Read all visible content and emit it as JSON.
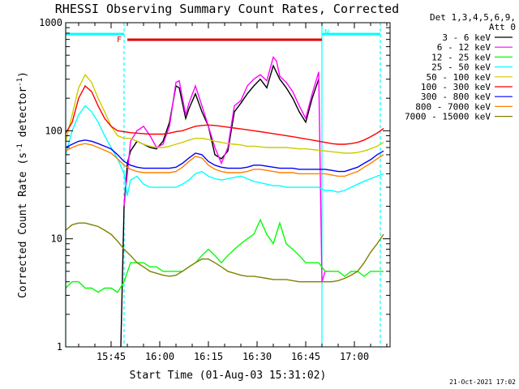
{
  "chart_data": {
    "type": "line",
    "title": "RHESSI Observing Summary Count Rates, Corrected",
    "xlabel": "Start Time (01-Aug-03 15:31:02)",
    "ylabel": "Corrected Count Rate (s",
    "ylabel_sup": "-1",
    "ylabel_mid": " detector",
    "ylabel_sup2": "-1",
    "ylabel_end": ")",
    "y_scale": "log",
    "ylim": [
      1,
      1000
    ],
    "xlim_minutes_from_1531": [
      0,
      100
    ],
    "x_tick_labels": [
      "15:45",
      "16:00",
      "16:15",
      "16:30",
      "16:45",
      "17:00"
    ],
    "x_tick_minutes": [
      14,
      29,
      44,
      59,
      74,
      89
    ],
    "y_tick_labels": [
      "1",
      "10",
      "100",
      "1000"
    ],
    "y_tick_values": [
      1,
      10,
      100,
      1000
    ],
    "detector_info": [
      "Det 1,3,4,5,6,9,",
      "Att 0"
    ],
    "bars": [
      {
        "label": "N",
        "color": "#00ffff",
        "start_min": 0,
        "end_min": 18
      },
      {
        "label": "N",
        "color": "#00ffff",
        "start_min": 79,
        "end_min": 97
      },
      {
        "label": "F",
        "color": "#e00000",
        "start_min": 19,
        "end_min": 79
      }
    ],
    "night_lines_min": [
      0,
      18,
      79,
      97
    ],
    "series": [
      {
        "name": "3 - 6 keV",
        "color": "#000000",
        "x": [
          17,
          18,
          19,
          20,
          22,
          24,
          26,
          28,
          30,
          32,
          34,
          35,
          36,
          37,
          38,
          40,
          42,
          44,
          46,
          48,
          50,
          52,
          54,
          56,
          58,
          60,
          62,
          64,
          66,
          68,
          70,
          72,
          74,
          76,
          78
        ],
        "y": [
          1,
          20,
          50,
          65,
          80,
          75,
          70,
          68,
          80,
          120,
          260,
          250,
          180,
          130,
          160,
          220,
          150,
          110,
          60,
          55,
          65,
          150,
          180,
          220,
          260,
          300,
          250,
          400,
          300,
          250,
          200,
          150,
          120,
          200,
          300
        ]
      },
      {
        "name": "6 - 12 keV",
        "color": "#ff00ff",
        "x": [
          18,
          20,
          22,
          24,
          26,
          28,
          30,
          32,
          34,
          35,
          36,
          37,
          38,
          40,
          42,
          44,
          46,
          48,
          50,
          52,
          54,
          56,
          58,
          60,
          62,
          64,
          65,
          66,
          68,
          70,
          72,
          74,
          76,
          78,
          79,
          80,
          82
        ],
        "y": [
          20,
          80,
          100,
          110,
          90,
          70,
          75,
          110,
          280,
          290,
          200,
          140,
          180,
          260,
          170,
          110,
          70,
          50,
          70,
          170,
          190,
          260,
          300,
          330,
          290,
          480,
          440,
          320,
          280,
          230,
          170,
          130,
          220,
          350,
          4,
          5,
          5
        ]
      },
      {
        "name": "12 - 25 keV",
        "color": "#00ff00",
        "x": [
          0,
          2,
          4,
          6,
          8,
          10,
          12,
          14,
          16,
          18,
          20,
          22,
          24,
          26,
          28,
          30,
          32,
          34,
          36,
          38,
          40,
          42,
          44,
          46,
          48,
          50,
          52,
          54,
          56,
          58,
          60,
          62,
          64,
          66,
          68,
          70,
          72,
          74,
          76,
          78,
          80,
          82,
          84,
          86,
          88,
          90,
          92,
          94,
          96,
          98
        ],
        "y": [
          3.5,
          4,
          4,
          3.5,
          3.5,
          3.2,
          3.5,
          3.5,
          3.2,
          4,
          6,
          6,
          6,
          5.5,
          5.5,
          5,
          5,
          5,
          5,
          5.5,
          6,
          7,
          8,
          7,
          6,
          7,
          8,
          9,
          10,
          11,
          15,
          11,
          9,
          14,
          9,
          8,
          7,
          6,
          6,
          6,
          5,
          5,
          5,
          4.5,
          5,
          5,
          4.5,
          5,
          5,
          5
        ]
      },
      {
        "name": "25 - 50 keV",
        "color": "#00ffff",
        "x": [
          0,
          2,
          4,
          6,
          8,
          10,
          12,
          14,
          16,
          18,
          19,
          20,
          22,
          24,
          26,
          28,
          30,
          32,
          34,
          36,
          38,
          40,
          42,
          44,
          46,
          48,
          50,
          52,
          54,
          56,
          58,
          60,
          62,
          64,
          66,
          68,
          70,
          72,
          74,
          76,
          78,
          80,
          82,
          84,
          86,
          88,
          90,
          92,
          94,
          96,
          98
        ],
        "y": [
          60,
          100,
          140,
          170,
          150,
          120,
          90,
          70,
          55,
          40,
          25,
          35,
          38,
          32,
          30,
          30,
          30,
          30,
          30,
          32,
          35,
          40,
          42,
          38,
          36,
          35,
          36,
          37,
          38,
          36,
          34,
          33,
          32,
          31,
          31,
          30,
          30,
          30,
          30,
          30,
          30,
          28,
          28,
          27,
          28,
          30,
          32,
          34,
          36,
          38,
          40
        ]
      },
      {
        "name": "50 - 100 keV",
        "color": "#cccc00",
        "x": [
          0,
          2,
          4,
          6,
          8,
          10,
          12,
          14,
          16,
          18,
          20,
          22,
          24,
          26,
          28,
          30,
          32,
          34,
          36,
          38,
          40,
          42,
          44,
          46,
          48,
          50,
          52,
          54,
          56,
          58,
          60,
          62,
          64,
          66,
          68,
          70,
          72,
          74,
          76,
          78,
          80,
          82,
          84,
          86,
          88,
          90,
          92,
          94,
          96,
          98
        ],
        "y": [
          80,
          140,
          250,
          330,
          280,
          200,
          150,
          110,
          90,
          85,
          85,
          80,
          75,
          72,
          70,
          70,
          72,
          75,
          78,
          82,
          85,
          85,
          83,
          80,
          78,
          76,
          75,
          74,
          72,
          72,
          71,
          70,
          70,
          70,
          70,
          69,
          68,
          68,
          67,
          66,
          65,
          64,
          63,
          62,
          62,
          63,
          65,
          68,
          72,
          78
        ]
      },
      {
        "name": "100 - 300 keV",
        "color": "#ff0000",
        "x": [
          0,
          2,
          4,
          6,
          8,
          10,
          12,
          14,
          16,
          18,
          20,
          22,
          24,
          26,
          28,
          30,
          32,
          34,
          36,
          38,
          40,
          42,
          44,
          46,
          48,
          50,
          52,
          54,
          56,
          58,
          60,
          62,
          64,
          66,
          68,
          70,
          72,
          74,
          76,
          78,
          80,
          82,
          84,
          86,
          88,
          90,
          92,
          94,
          96,
          98
        ],
        "y": [
          95,
          120,
          200,
          260,
          230,
          170,
          130,
          110,
          100,
          98,
          96,
          95,
          94,
          93,
          93,
          93,
          95,
          98,
          100,
          105,
          110,
          112,
          113,
          112,
          110,
          108,
          106,
          104,
          102,
          100,
          98,
          96,
          94,
          92,
          90,
          88,
          86,
          84,
          82,
          80,
          78,
          76,
          75,
          75,
          76,
          78,
          82,
          88,
          95,
          105
        ]
      },
      {
        "name": "300 - 800 keV",
        "color": "#0000ff",
        "x": [
          0,
          2,
          4,
          6,
          8,
          10,
          12,
          14,
          16,
          18,
          20,
          22,
          24,
          26,
          28,
          30,
          32,
          34,
          36,
          38,
          40,
          42,
          44,
          46,
          48,
          50,
          52,
          54,
          56,
          58,
          60,
          62,
          64,
          66,
          68,
          70,
          72,
          74,
          76,
          78,
          80,
          82,
          84,
          86,
          88,
          90,
          92,
          94,
          96,
          98
        ],
        "y": [
          70,
          75,
          80,
          82,
          80,
          76,
          72,
          68,
          60,
          52,
          48,
          46,
          45,
          45,
          45,
          45,
          45,
          46,
          50,
          56,
          62,
          60,
          52,
          48,
          46,
          45,
          45,
          45,
          46,
          48,
          48,
          47,
          46,
          45,
          45,
          45,
          44,
          44,
          44,
          44,
          44,
          43,
          42,
          42,
          44,
          46,
          50,
          54,
          60,
          65
        ]
      },
      {
        "name": "800 - 7000 keV",
        "color": "#ff8000",
        "x": [
          0,
          2,
          4,
          6,
          8,
          10,
          12,
          14,
          16,
          18,
          20,
          22,
          24,
          26,
          28,
          30,
          32,
          34,
          36,
          38,
          40,
          42,
          44,
          46,
          48,
          50,
          52,
          54,
          56,
          58,
          60,
          62,
          64,
          66,
          68,
          70,
          72,
          74,
          76,
          78,
          80,
          82,
          84,
          86,
          88,
          90,
          92,
          94,
          96,
          98
        ],
        "y": [
          65,
          70,
          74,
          76,
          74,
          70,
          66,
          62,
          55,
          48,
          44,
          42,
          41,
          41,
          41,
          41,
          41,
          42,
          46,
          52,
          58,
          56,
          48,
          44,
          42,
          41,
          41,
          41,
          42,
          44,
          44,
          43,
          42,
          41,
          41,
          41,
          40,
          40,
          40,
          40,
          40,
          39,
          38,
          38,
          40,
          42,
          46,
          50,
          55,
          60
        ]
      },
      {
        "name": "7000 - 15000 keV",
        "color": "#808000",
        "x": [
          0,
          2,
          4,
          6,
          8,
          10,
          12,
          14,
          16,
          18,
          20,
          22,
          24,
          26,
          28,
          30,
          32,
          34,
          36,
          38,
          40,
          42,
          44,
          46,
          48,
          50,
          52,
          54,
          56,
          58,
          60,
          62,
          64,
          66,
          68,
          70,
          72,
          74,
          76,
          78,
          80,
          82,
          84,
          86,
          88,
          90,
          92,
          94,
          96,
          98
        ],
        "y": [
          12,
          13.5,
          14,
          14,
          13.5,
          13,
          12,
          11,
          9.5,
          8,
          7,
          6,
          5.5,
          5,
          4.8,
          4.6,
          4.5,
          4.6,
          5,
          5.5,
          6,
          6.5,
          6.5,
          6,
          5.5,
          5,
          4.8,
          4.6,
          4.5,
          4.5,
          4.4,
          4.3,
          4.2,
          4.2,
          4.2,
          4.1,
          4,
          4,
          4,
          4,
          4,
          4,
          4.1,
          4.3,
          4.6,
          5,
          6,
          7.5,
          9,
          11
        ]
      }
    ]
  },
  "footer": {
    "timestamp": "21-Oct-2021 17:02"
  }
}
